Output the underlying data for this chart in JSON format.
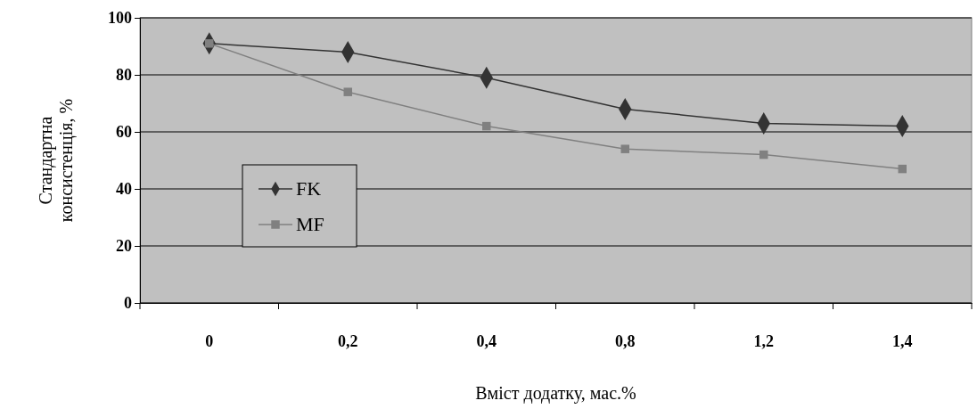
{
  "chart_data": {
    "type": "line",
    "xlabel": "Вміст додатку, мас.%",
    "ylabel": "Стандартна консистенція, %",
    "categories": [
      "0",
      "0,2",
      "0,4",
      "0,8",
      "1,2",
      "1,4"
    ],
    "series": [
      {
        "name": "FK",
        "color": "#333333",
        "marker": "diamond",
        "values": [
          91,
          88,
          79,
          68,
          63,
          62
        ]
      },
      {
        "name": "MF",
        "color": "#808080",
        "marker": "square",
        "values": [
          91,
          74,
          62,
          54,
          52,
          47
        ]
      }
    ],
    "ylim": [
      0,
      100
    ],
    "yticks": [
      0,
      20,
      40,
      60,
      80,
      100
    ],
    "grid": "y",
    "legend": "left"
  }
}
